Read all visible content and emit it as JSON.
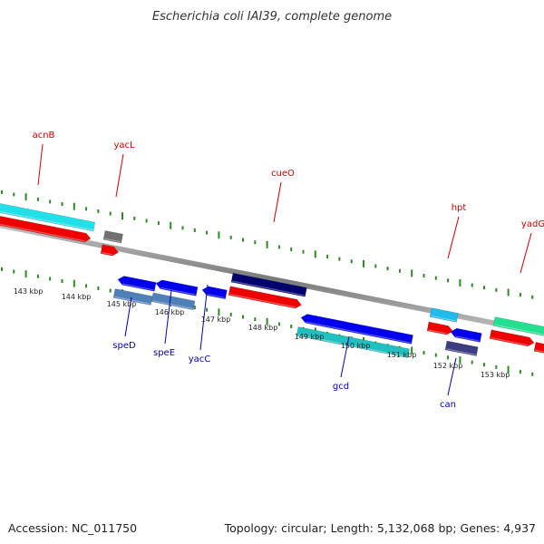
{
  "title": "Escherichia coli IAI39, complete genome",
  "accession": "Accession: NC_011750",
  "topology": "Topology: circular; Length: 5,132,068 bp; Genes: 4,937",
  "colors": {
    "backbone": "#808080",
    "tick_mark": "#2e8b22",
    "label_forward": "#cc0000",
    "label_reverse": "#0000aa"
  },
  "scale": {
    "unit": "kbp",
    "ticks": [
      {
        "label": "143 kbp"
      },
      {
        "label": "144 kbp"
      },
      {
        "label": "145 kbp"
      },
      {
        "label": "146 kbp"
      },
      {
        "label": "147 kbp"
      },
      {
        "label": "148 kbp"
      },
      {
        "label": "149 kbp"
      },
      {
        "label": "150 kbp"
      },
      {
        "label": "151 kbp"
      },
      {
        "label": "152 kbp"
      },
      {
        "label": "153 kbp"
      }
    ]
  },
  "gene_labels": [
    {
      "name": "acnB",
      "strand": "forward"
    },
    {
      "name": "yacL",
      "strand": "forward"
    },
    {
      "name": "cueO",
      "strand": "forward"
    },
    {
      "name": "hpt",
      "strand": "forward"
    },
    {
      "name": "yadG",
      "strand": "forward"
    },
    {
      "name": "speD",
      "strand": "reverse"
    },
    {
      "name": "speE",
      "strand": "reverse"
    },
    {
      "name": "yacC",
      "strand": "reverse"
    },
    {
      "name": "gcd",
      "strand": "reverse"
    },
    {
      "name": "can",
      "strand": "reverse"
    }
  ],
  "features": [
    {
      "type": "gene",
      "strand": "forward",
      "color": "#22e0e8"
    },
    {
      "type": "cds",
      "strand": "forward",
      "color": "#ee0000"
    },
    {
      "type": "gene",
      "strand": "forward",
      "color": "#707070"
    },
    {
      "type": "cds",
      "strand": "forward",
      "color": "#ee0000"
    },
    {
      "type": "gene",
      "strand": "forward",
      "color": "#00006e"
    },
    {
      "type": "cds",
      "strand": "forward",
      "color": "#ee0000"
    },
    {
      "type": "gene",
      "strand": "forward",
      "color": "#22bbee"
    },
    {
      "type": "cds",
      "strand": "forward",
      "color": "#ee0000"
    },
    {
      "type": "gene",
      "strand": "forward",
      "color": "#22e090"
    },
    {
      "type": "cds",
      "strand": "forward",
      "color": "#ee0000"
    },
    {
      "type": "cds",
      "strand": "forward",
      "color": "#ee0000"
    },
    {
      "type": "cds",
      "strand": "reverse",
      "color": "#0000ee"
    },
    {
      "type": "cds",
      "strand": "reverse",
      "color": "#0000ee"
    },
    {
      "type": "cds",
      "strand": "reverse",
      "color": "#0000ee"
    },
    {
      "type": "gene",
      "strand": "reverse",
      "color": "#4f80b8"
    },
    {
      "type": "gene",
      "strand": "reverse",
      "color": "#4f80b8"
    },
    {
      "type": "cds",
      "strand": "reverse",
      "color": "#0000ee"
    },
    {
      "type": "gene",
      "strand": "reverse",
      "color": "#1fc0c0"
    },
    {
      "type": "cds",
      "strand": "reverse",
      "color": "#0000ee"
    },
    {
      "type": "gene",
      "strand": "reverse",
      "color": "#3c3c80"
    }
  ]
}
